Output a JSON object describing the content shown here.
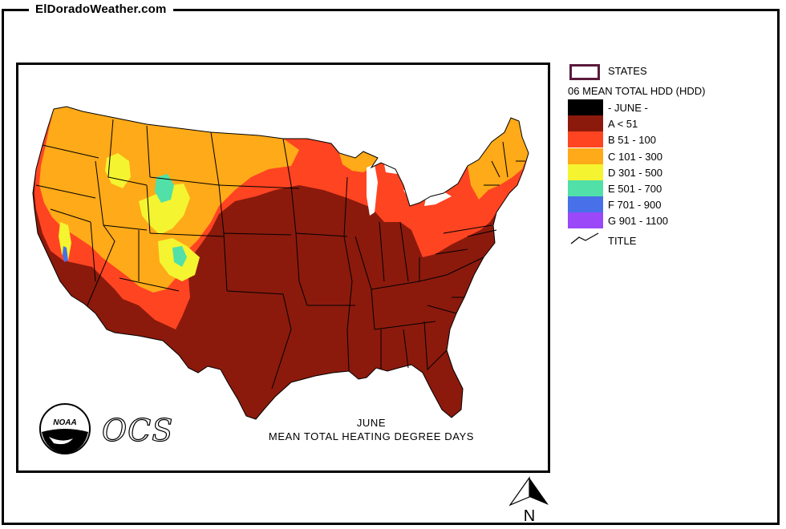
{
  "site": {
    "title": "ElDoradoWeather.com"
  },
  "map": {
    "month": "JUNE",
    "caption": "MEAN TOTAL HEATING  DEGREE DAYS",
    "ocs_text": "OCS",
    "noaa_text": "NOAA",
    "north_label": "N"
  },
  "legend": {
    "states_label": "STATES",
    "heading": "06 MEAN TOTAL HDD (HDD)",
    "classes": [
      {
        "label": "- JUNE -",
        "color": "#000000"
      },
      {
        "label": "A < 51",
        "color": "#8b1a0c"
      },
      {
        "label": "B 51 -  100",
        "color": "#ff4422"
      },
      {
        "label": "C 101 -  300",
        "color": "#ffaa18"
      },
      {
        "label": "D 301 -  500",
        "color": "#f4f430"
      },
      {
        "label": "E 501 -  700",
        "color": "#50e0a8"
      },
      {
        "label": "F 701 -  900",
        "color": "#4870e8"
      },
      {
        "label": "G 901 -  1100",
        "color": "#9a48f8"
      }
    ],
    "title_label": "TITLE"
  },
  "colors": {
    "low": "#8b1a0c",
    "mid": "#ff4422",
    "cool": "#ffaa18",
    "cold": "#f4f430",
    "colder": "#50e0a8",
    "coldest": "#4870e8",
    "state_lines": "#000000"
  }
}
